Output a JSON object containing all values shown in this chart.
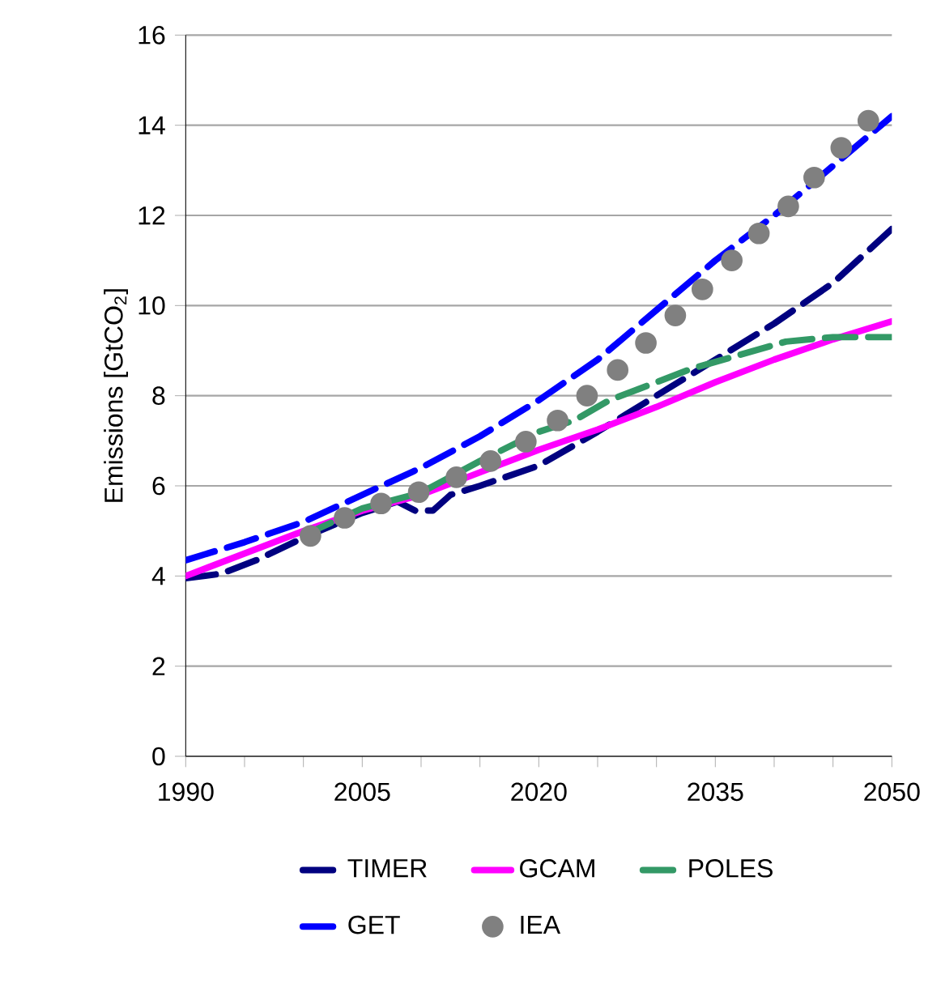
{
  "chart_data": {
    "type": "line",
    "ylabel": "Emissions [GtCO$_{2}$]",
    "xlim": [
      1990,
      2050
    ],
    "xticks": [
      1990,
      {
        "value": 1995,
        "label": null
      },
      {
        "value": 2000,
        "label": null
      },
      2005,
      {
        "value": 2010,
        "label": null
      },
      {
        "value": 2015,
        "label": null
      },
      2020,
      {
        "value": 2025,
        "label": null
      },
      {
        "value": 2030,
        "label": null
      },
      2035,
      {
        "value": 2040,
        "label": null
      },
      {
        "value": 2045,
        "label": null
      },
      2050
    ],
    "ylim": [
      0,
      16
    ],
    "yticks": [
      0,
      2,
      4,
      6,
      8,
      10,
      12,
      14,
      16
    ],
    "grid": "y",
    "legend": "bottom",
    "series": [
      {
        "name": "TIMER",
        "color": "#000080",
        "line_style": "dashed",
        "marker": "none",
        "x": [
          1990,
          1993,
          1996,
          2000,
          2005,
          2008,
          2009.5,
          2011,
          2012.5,
          2015,
          2020,
          2025,
          2030,
          2035,
          2040,
          2045,
          2050
        ],
        "values": [
          3.95,
          4.05,
          4.35,
          4.85,
          5.4,
          5.65,
          5.45,
          5.45,
          5.8,
          6.0,
          6.45,
          7.2,
          8.0,
          8.8,
          9.6,
          10.5,
          11.7
        ]
      },
      {
        "name": "GCAM",
        "color": "#ff00ff",
        "line_style": "solid",
        "marker": "none",
        "x": [
          1990,
          2000,
          2005,
          2010,
          2015,
          2020,
          2025,
          2030,
          2035,
          2040,
          2045,
          2050
        ],
        "values": [
          4.0,
          5.0,
          5.45,
          5.8,
          6.3,
          6.8,
          7.25,
          7.75,
          8.3,
          8.8,
          9.25,
          9.65
        ]
      },
      {
        "name": "POLES",
        "color": "#339966",
        "line_style": "dashed",
        "marker": "none",
        "x": [
          2000,
          2005,
          2010,
          2015,
          2020,
          2023,
          2026,
          2030,
          2033,
          2037,
          2041,
          2045,
          2050
        ],
        "values": [
          4.9,
          5.5,
          5.85,
          6.55,
          7.2,
          7.45,
          7.9,
          8.3,
          8.6,
          8.9,
          9.2,
          9.3,
          9.3
        ]
      },
      {
        "name": "GET",
        "color": "#0000ff",
        "line_style": "dashed",
        "marker": "none",
        "x": [
          1990,
          1995,
          2000,
          2005,
          2010,
          2015,
          2020,
          2025,
          2030,
          2035,
          2040,
          2045,
          2050
        ],
        "values": [
          4.35,
          4.75,
          5.2,
          5.8,
          6.4,
          7.1,
          7.9,
          8.8,
          9.9,
          11.0,
          12.0,
          13.1,
          14.2
        ]
      },
      {
        "name": "IEA",
        "type": "scatter",
        "color": "#808080",
        "marker": "circle",
        "x": [
          2000.6,
          2003.5,
          2006.6,
          2009.8,
          2013.0,
          2015.9,
          2018.9,
          2021.6,
          2024.1,
          2026.7,
          2029.1,
          2031.6,
          2033.9,
          2036.4,
          2038.7,
          2041.2,
          2043.4,
          2045.7,
          2048.0
        ],
        "values": [
          4.89,
          5.29,
          5.61,
          5.86,
          6.19,
          6.55,
          6.98,
          7.45,
          8.0,
          8.57,
          9.17,
          9.78,
          10.36,
          11.0,
          11.6,
          12.2,
          12.84,
          13.5,
          14.1
        ]
      }
    ]
  }
}
